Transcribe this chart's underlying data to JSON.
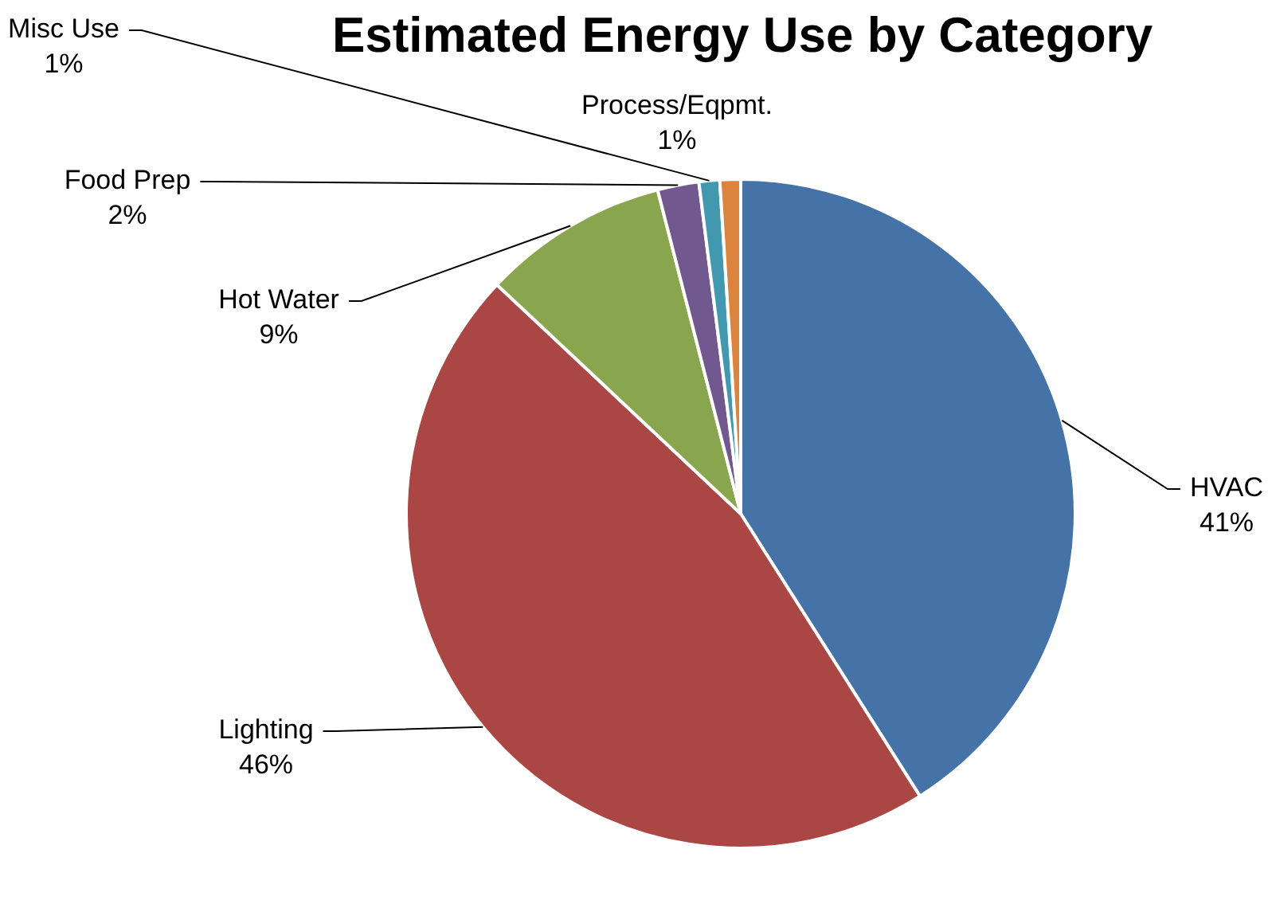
{
  "chart_data": {
    "type": "pie",
    "title": "Estimated Energy Use by Category",
    "categories": [
      "HVAC",
      "Lighting",
      "Hot Water",
      "Food Prep",
      "Misc Use",
      "Process/Eqpmt."
    ],
    "values": [
      41,
      46,
      9,
      2,
      1,
      1
    ],
    "colors": [
      "#4572a7",
      "#aa4643",
      "#89a54e",
      "#71588f",
      "#4198af",
      "#db843d"
    ],
    "value_labels": [
      "41%",
      "46%",
      "9%",
      "2%",
      "1%",
      "1%"
    ],
    "legend": false
  }
}
